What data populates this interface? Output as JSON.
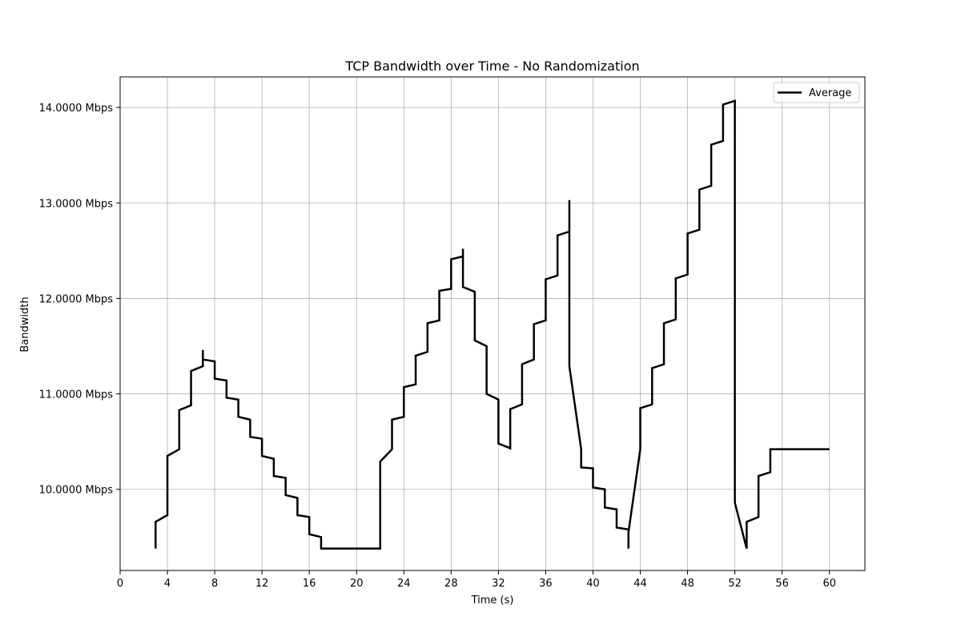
{
  "chart_data": {
    "type": "line",
    "title": "TCP Bandwidth over Time - No Randomization",
    "xlabel": "Time (s)",
    "ylabel": "Bandwidth",
    "xlim": [
      0,
      63
    ],
    "ylim": [
      9.15,
      14.32
    ],
    "xticks": [
      "0",
      "4",
      "8",
      "12",
      "16",
      "20",
      "24",
      "28",
      "32",
      "36",
      "40",
      "44",
      "48",
      "52",
      "56",
      "60"
    ],
    "yticks": [
      "10.0000 Mbps",
      "11.0000 Mbps",
      "12.0000 Mbps",
      "13.0000 Mbps",
      "14.0000 Mbps"
    ],
    "grid": true,
    "legend_position": "top-right",
    "series": [
      {
        "name": "Average",
        "color": "#000000",
        "x": [
          3,
          3,
          4,
          4,
          4,
          5,
          5,
          6,
          6,
          7,
          7,
          7,
          7,
          8,
          8,
          9,
          9,
          10,
          10,
          11,
          11,
          12,
          12,
          13,
          13,
          14,
          14,
          15,
          15,
          16,
          16,
          17,
          17,
          18,
          19,
          20,
          21,
          22,
          22,
          23,
          23,
          24,
          24,
          25,
          25,
          26,
          26,
          27,
          27,
          28,
          28,
          29,
          29,
          29,
          29,
          30,
          30,
          31,
          31,
          32,
          32,
          33,
          33,
          34,
          34,
          35,
          35,
          36,
          36,
          37,
          37,
          38,
          38,
          38,
          39,
          39,
          40,
          40,
          41,
          41,
          42,
          42,
          43,
          43,
          43,
          44,
          44,
          45,
          45,
          46,
          46,
          47,
          47,
          48,
          48,
          49,
          49,
          50,
          50,
          51,
          51,
          52,
          52,
          53,
          53,
          54,
          54,
          55,
          55,
          56,
          57,
          58,
          59,
          60
        ],
        "y": [
          9.38,
          9.66,
          9.73,
          10.35,
          10.35,
          10.42,
          10.83,
          10.88,
          11.24,
          11.29,
          11.46,
          11.36,
          11.36,
          11.34,
          11.16,
          11.14,
          10.96,
          10.94,
          10.76,
          10.73,
          10.55,
          10.53,
          10.35,
          10.32,
          10.14,
          10.12,
          9.94,
          9.91,
          9.73,
          9.71,
          9.53,
          9.5,
          9.38,
          9.38,
          9.38,
          9.38,
          9.38,
          9.38,
          10.29,
          10.42,
          10.73,
          10.76,
          11.07,
          11.1,
          11.4,
          11.44,
          11.74,
          11.77,
          12.08,
          12.1,
          12.41,
          12.44,
          12.52,
          12.44,
          12.12,
          12.07,
          11.56,
          11.5,
          11.0,
          10.94,
          10.48,
          10.43,
          10.84,
          10.89,
          11.31,
          11.36,
          11.73,
          11.77,
          12.2,
          12.24,
          12.66,
          12.7,
          13.03,
          11.29,
          10.42,
          10.23,
          10.22,
          10.02,
          10.0,
          9.81,
          9.79,
          9.6,
          9.58,
          9.38,
          9.55,
          10.42,
          10.85,
          10.89,
          11.27,
          11.31,
          11.74,
          11.78,
          12.21,
          12.25,
          12.68,
          12.72,
          13.14,
          13.18,
          13.61,
          13.65,
          14.03,
          14.07,
          9.86,
          9.38,
          9.66,
          9.71,
          10.14,
          10.18,
          10.42,
          10.42,
          10.42,
          10.42,
          10.42,
          10.42
        ]
      }
    ]
  }
}
